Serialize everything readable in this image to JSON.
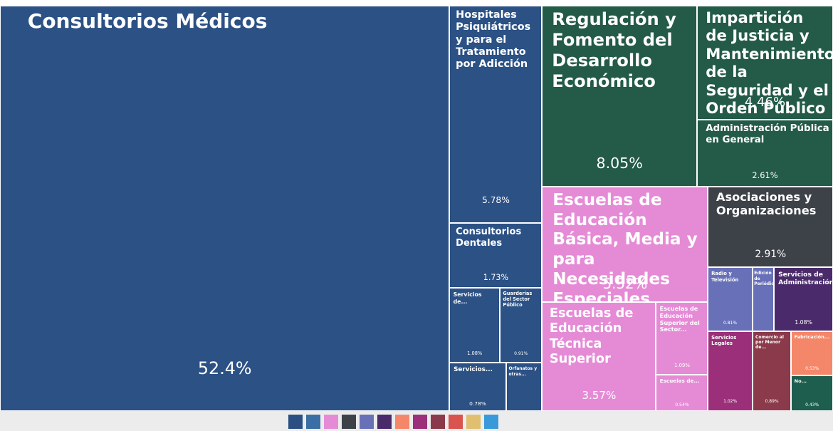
{
  "chart_data": {
    "type": "treemap",
    "groups": [
      {
        "color": "#2b5185",
        "labels": [
          "Consultorios Médicos",
          "Hospitales Psiquiátricos y para el Tratamiento por Adicción",
          "Consultorios Dentales",
          "Servicios de...",
          "Guarderías del Sector Público",
          "Servicios...",
          "Orfanatos y otras..."
        ],
        "values": [
          52.4,
          5.78,
          1.73,
          1.08,
          0.91,
          0.78,
          0.5
        ],
        "value_labels": [
          "52.4%",
          "5.78%",
          "1.73%",
          "1.08%",
          "0.91%",
          "0.78%",
          null
        ]
      },
      {
        "color": "#235a48",
        "labels": [
          "Regulación y Fomento del Desarrollo Económico",
          "Impartición de Justicia y Mantenimiento de la Seguridad y el Orden Público",
          "Administración Pública en General"
        ],
        "values": [
          8.05,
          4.46,
          2.61
        ],
        "value_labels": [
          "8.05%",
          "4.46%",
          "2.61%"
        ]
      },
      {
        "color": "#e58bd6",
        "labels": [
          "Escuelas de Educación Básica, Media y para Necesidades Especiales",
          "Escuelas de Educación Técnica Superior",
          "Escuelas de Educación Superior del Sector...",
          "Escuelas de..."
        ],
        "values": [
          5.52,
          3.57,
          1.09,
          0.54
        ],
        "value_labels": [
          "5.52%",
          "3.57%",
          "1.09%",
          "0.54%"
        ]
      },
      {
        "color": "#3d4148",
        "labels": [
          "Asociaciones y Organizaciones"
        ],
        "values": [
          2.91
        ],
        "value_labels": [
          "2.91%"
        ]
      },
      {
        "color": "#6870b8",
        "labels": [
          "Radio y Televisión",
          "Edición de Periódicos..."
        ],
        "values": [
          0.81,
          0.4
        ],
        "value_labels": [
          "0.81%",
          null
        ]
      },
      {
        "color": "#4a2a6a",
        "labels": [
          "Servicios de Administración..."
        ],
        "values": [
          1.08
        ],
        "value_labels": [
          "1.08%"
        ]
      },
      {
        "color": "#9b2f7a",
        "labels": [
          "Servicios Legales"
        ],
        "values": [
          1.02
        ],
        "value_labels": [
          "1.02%"
        ]
      },
      {
        "color": "#8a3a4a",
        "labels": [
          "Comercio al por Menor de..."
        ],
        "values": [
          0.89
        ],
        "value_labels": [
          "0.89%"
        ]
      },
      {
        "color": "#f4876a",
        "labels": [
          "Fabricación..."
        ],
        "values": [
          0.53
        ],
        "value_labels": [
          "0.53%"
        ]
      },
      {
        "color": "#1e5e4e",
        "labels": [
          "No..."
        ],
        "values": [
          0.43
        ],
        "value_labels": [
          "0.43%"
        ]
      }
    ]
  }
}
